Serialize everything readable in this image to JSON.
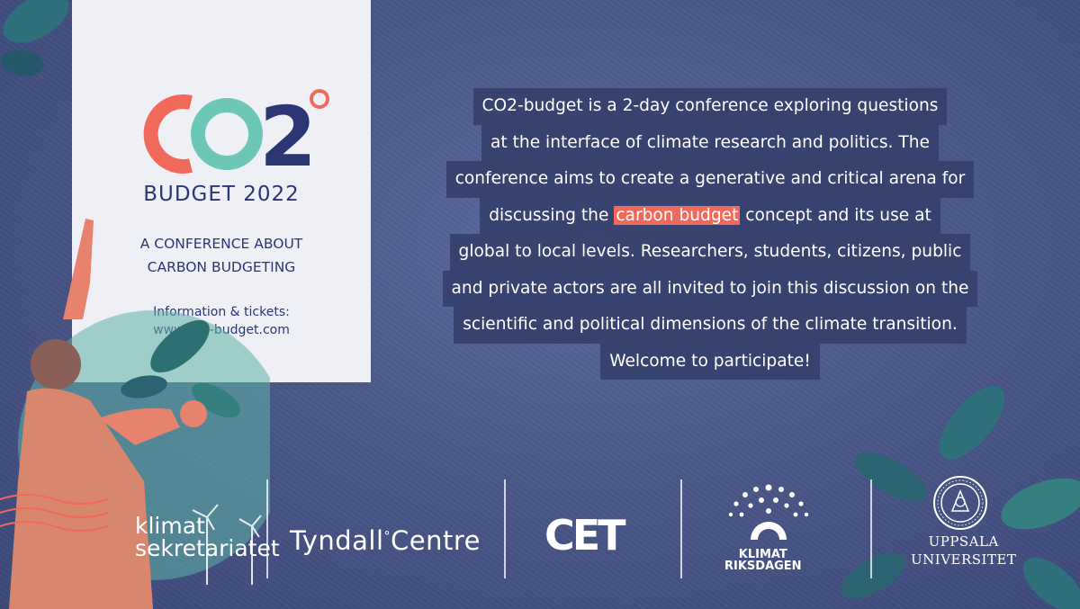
{
  "poster": {
    "logo_text": "CO2°",
    "budget_label": "BUDGET 2022",
    "tagline": [
      "A CONFERENCE ABOUT",
      "CARBON BUDGETING"
    ],
    "info": [
      "Information & tickets:",
      "www.co2-budget.com"
    ]
  },
  "description": {
    "lines": [
      "CO2-budget is a 2-day conference exploring questions",
      "at the interface of climate research and politics. The",
      "conference aims to create a generative and critical arena for",
      "global to local levels. Researchers, students, citizens, public",
      "and private actors are all invited to join this discussion on the",
      "scientific and political dimensions of the climate transition.",
      "Welcome to participate!"
    ],
    "highlight_line": {
      "before": "discussing the ",
      "highlight": "carbon budget",
      "after": " concept and its use at"
    }
  },
  "sponsors": {
    "klimat_sekretariatet": [
      "klimat",
      "sekretariatet"
    ],
    "tyndall": "Tyndall",
    "tyndall_suffix": "Centre",
    "cet": "CET",
    "klimatriksdagen": [
      "KLIMAT",
      "RIKSDAGEN"
    ],
    "uppsala": [
      "UPPSALA",
      "UNIVERSITET"
    ]
  },
  "colors": {
    "background": "#4a5888",
    "card": "#eef0f6",
    "accent_coral": "#f0695b",
    "accent_teal": "#6cc7b7",
    "navy": "#2c3674"
  }
}
